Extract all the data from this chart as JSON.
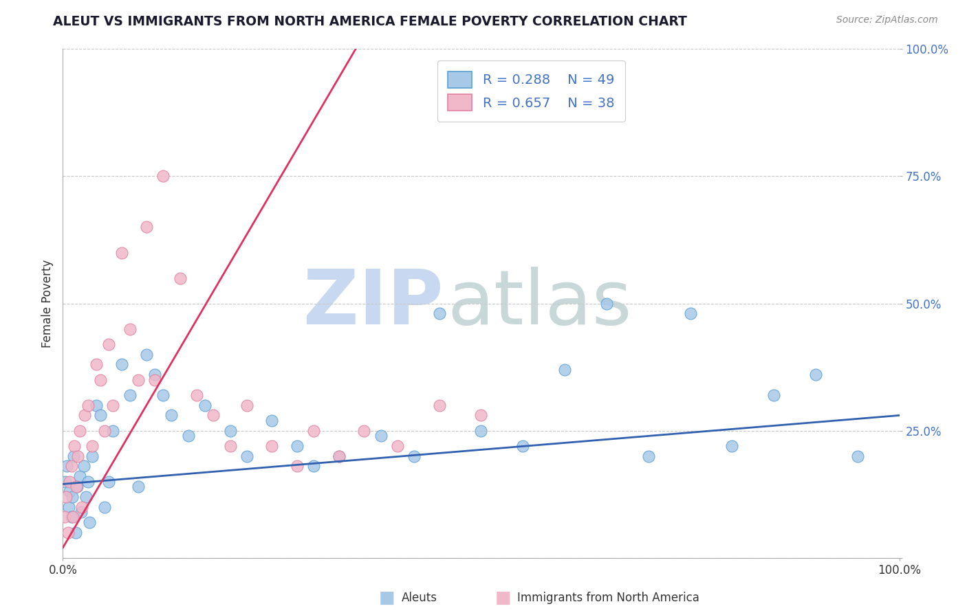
{
  "title": "ALEUT VS IMMIGRANTS FROM NORTH AMERICA FEMALE POVERTY CORRELATION CHART",
  "source_text": "Source: ZipAtlas.com",
  "ylabel": "Female Poverty",
  "r_aleut": 0.288,
  "n_aleut": 49,
  "r_immigrant": 0.657,
  "n_immigrant": 38,
  "color_aleut_fill": "#a8c8e8",
  "color_aleut_edge": "#5a9fd4",
  "color_aleut_line": "#3060b0",
  "color_immigrant_fill": "#f0b8c8",
  "color_immigrant_edge": "#e080a0",
  "color_immigrant_line": "#e03060",
  "grid_color": "#c8c8c8",
  "watermark_zip_color": "#c8d8f0",
  "watermark_atlas_color": "#c8d8d8",
  "watermark_text_zip": "ZIP",
  "watermark_text_atlas": "atlas",
  "legend_r_color": "#4472c4",
  "legend_n_color": "#ed7d31",
  "title_color": "#1a1a2e",
  "source_color": "#888888",
  "tick_color": "#4472c4",
  "aleut_x": [
    0.3,
    0.5,
    0.7,
    0.8,
    1.0,
    1.1,
    1.3,
    1.5,
    1.7,
    2.0,
    2.2,
    2.5,
    2.8,
    3.0,
    3.2,
    3.5,
    4.0,
    4.5,
    5.0,
    5.5,
    6.0,
    7.0,
    8.0,
    9.0,
    10.0,
    11.0,
    12.0,
    13.0,
    15.0,
    17.0,
    20.0,
    22.0,
    25.0,
    28.0,
    30.0,
    33.0,
    38.0,
    42.0,
    45.0,
    50.0,
    55.0,
    60.0,
    65.0,
    70.0,
    75.0,
    80.0,
    85.0,
    90.0,
    95.0
  ],
  "aleut_y": [
    15.0,
    18.0,
    10.0,
    13.0,
    8.0,
    12.0,
    20.0,
    5.0,
    14.0,
    16.0,
    9.0,
    18.0,
    12.0,
    15.0,
    7.0,
    20.0,
    30.0,
    28.0,
    10.0,
    15.0,
    25.0,
    38.0,
    32.0,
    14.0,
    40.0,
    36.0,
    32.0,
    28.0,
    24.0,
    30.0,
    25.0,
    20.0,
    27.0,
    22.0,
    18.0,
    20.0,
    24.0,
    20.0,
    48.0,
    25.0,
    22.0,
    37.0,
    50.0,
    20.0,
    48.0,
    22.0,
    32.0,
    36.0,
    20.0
  ],
  "immigrant_x": [
    0.2,
    0.4,
    0.6,
    0.8,
    1.0,
    1.2,
    1.4,
    1.6,
    1.8,
    2.0,
    2.3,
    2.6,
    3.0,
    3.5,
    4.0,
    4.5,
    5.0,
    5.5,
    6.0,
    7.0,
    8.0,
    9.0,
    10.0,
    11.0,
    12.0,
    14.0,
    16.0,
    18.0,
    20.0,
    22.0,
    25.0,
    28.0,
    30.0,
    33.0,
    36.0,
    40.0,
    45.0,
    50.0
  ],
  "immigrant_y": [
    8.0,
    12.0,
    5.0,
    15.0,
    18.0,
    8.0,
    22.0,
    14.0,
    20.0,
    25.0,
    10.0,
    28.0,
    30.0,
    22.0,
    38.0,
    35.0,
    25.0,
    42.0,
    30.0,
    60.0,
    45.0,
    35.0,
    65.0,
    35.0,
    75.0,
    55.0,
    32.0,
    28.0,
    22.0,
    30.0,
    22.0,
    18.0,
    25.0,
    20.0,
    25.0,
    22.0,
    30.0,
    28.0
  ],
  "xmin": 0.0,
  "xmax": 100.0,
  "ymin": 0.0,
  "ymax": 100.0,
  "blue_line_x0": 0.0,
  "blue_line_y0": 14.5,
  "blue_line_x1": 100.0,
  "blue_line_y1": 28.0,
  "pink_line_x0": 0.0,
  "pink_line_y0": 2.0,
  "pink_line_x1": 35.0,
  "pink_line_y1": 100.0
}
